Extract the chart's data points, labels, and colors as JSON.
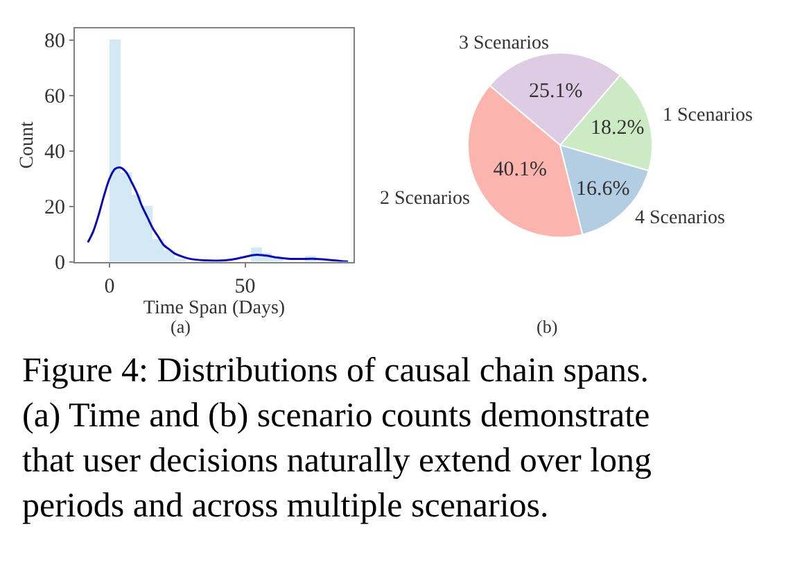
{
  "chart_data": [
    {
      "type": "histogram",
      "xlabel": "Time Span (Days)",
      "ylabel": "Count",
      "bins": [
        0,
        4,
        8,
        12,
        16,
        20,
        24,
        28,
        32,
        36,
        40,
        44,
        48,
        52,
        56,
        60,
        64,
        68,
        72,
        76,
        80
      ],
      "series": [
        {
          "type": "histogram",
          "color": "#d3eaf6",
          "values": [
            80,
            32,
            24,
            20,
            8,
            4,
            1,
            null,
            0,
            0,
            0,
            0,
            0,
            5,
            3,
            1,
            0,
            0,
            2,
            null
          ]
        },
        {
          "type": "line",
          "color": "#0a0ab4",
          "x": [
            -8,
            -6,
            -4,
            -2,
            0,
            2,
            4,
            6,
            8,
            10,
            12,
            14,
            16,
            18,
            20,
            22,
            24,
            27,
            30,
            35,
            40,
            45,
            50,
            53,
            55,
            58,
            62,
            66,
            70,
            75,
            80,
            85,
            88
          ],
          "values": [
            7,
            11,
            17,
            24,
            30,
            33.5,
            34,
            32.5,
            29,
            25,
            20,
            16,
            12,
            9,
            6,
            4.5,
            3,
            1.8,
            1,
            0.5,
            0.4,
            0.8,
            1.8,
            2.4,
            2.5,
            2.2,
            1.5,
            1.1,
            1,
            1.1,
            0.8,
            0.3,
            0.1
          ]
        }
      ],
      "xlim": [
        -12.8,
        90
      ],
      "xticks": [
        0,
        50
      ],
      "ylim": [
        0,
        84.2
      ],
      "yticks": [
        0,
        20,
        40,
        60,
        80
      ],
      "annotations": [
        "(a)"
      ]
    },
    {
      "type": "pie",
      "categories": [
        "1 Scenarios",
        "3 Scenarios",
        "2 Scenarios",
        "4 Scenarios"
      ],
      "values": [
        18.2,
        25.1,
        40.1,
        16.6
      ],
      "colors": [
        "#ccebc5",
        "#decbe4",
        "#fbb4ae",
        "#b3cde3"
      ],
      "value_labels": [
        "18.2%",
        "25.1%",
        "40.1%",
        "16.6%"
      ],
      "annotations": [
        "(b)",
        "Figure 4: Distributions of causal chain spans.\n(a) Time and (b) scenario counts demonstrate\nthat user decisions naturally extend over long\nperiods and across multiple scenarios."
      ]
    }
  ]
}
